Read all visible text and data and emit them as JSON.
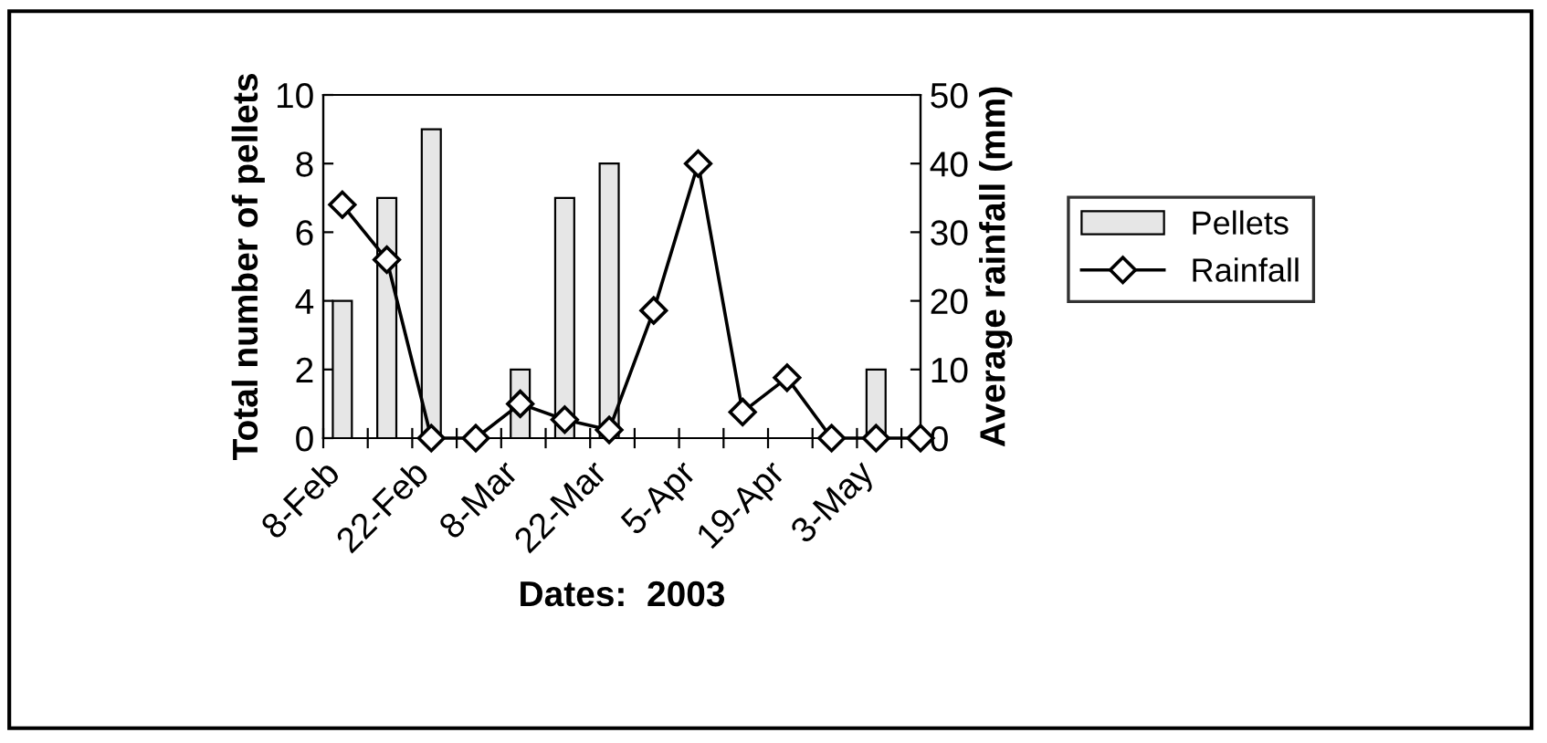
{
  "chart_data": {
    "type": "bar",
    "xlabel": "Dates:  2003",
    "ylabel": "Total number of pellets",
    "y2label": "Average rainfall (mm)",
    "x": [
      "2003-02-11",
      "2003-02-18",
      "2003-02-25",
      "2003-03-04",
      "2003-03-11",
      "2003-03-18",
      "2003-03-25",
      "2003-04-01",
      "2003-04-08",
      "2003-04-15",
      "2003-04-22",
      "2003-04-29",
      "2003-05-06",
      "2003-05-13"
    ],
    "series": [
      {
        "name": "Pellets",
        "color": "#e6e6e6",
        "values": [
          4,
          7,
          9,
          0,
          2,
          7,
          8,
          0,
          0,
          0,
          0,
          0,
          2,
          0
        ]
      },
      {
        "name": "Rainfall",
        "type": "line",
        "axis": "y2",
        "color": "#000000",
        "marker": "diamond",
        "values": [
          34,
          26,
          0,
          0,
          5,
          2.7,
          1.2,
          18.6,
          40,
          3.8,
          8.8,
          0,
          0,
          0
        ]
      }
    ],
    "xlim": [
      "2003-02-08",
      "2003-05-13"
    ],
    "xticks": [
      {
        "value": "2003-02-08",
        "label": "8-Feb"
      },
      {
        "value": "2003-02-15",
        "label": null
      },
      {
        "value": "2003-02-22",
        "label": "22-Feb"
      },
      {
        "value": "2003-03-01",
        "label": null
      },
      {
        "value": "2003-03-08",
        "label": "8-Mar"
      },
      {
        "value": "2003-03-15",
        "label": null
      },
      {
        "value": "2003-03-22",
        "label": "22-Mar"
      },
      {
        "value": "2003-03-29",
        "label": null
      },
      {
        "value": "2003-04-05",
        "label": "5-Apr"
      },
      {
        "value": "2003-04-12",
        "label": null
      },
      {
        "value": "2003-04-19",
        "label": "19-Apr"
      },
      {
        "value": "2003-04-26",
        "label": null
      },
      {
        "value": "2003-05-03",
        "label": "3-May"
      },
      {
        "value": "2003-05-10",
        "label": null
      }
    ],
    "ylim": [
      0,
      10
    ],
    "yticks": [
      0,
      2,
      4,
      6,
      8,
      10
    ],
    "y2lim": [
      0,
      50
    ],
    "y2ticks": [
      0,
      10,
      20,
      30,
      40,
      50
    ],
    "grid": false,
    "legend": "right"
  }
}
